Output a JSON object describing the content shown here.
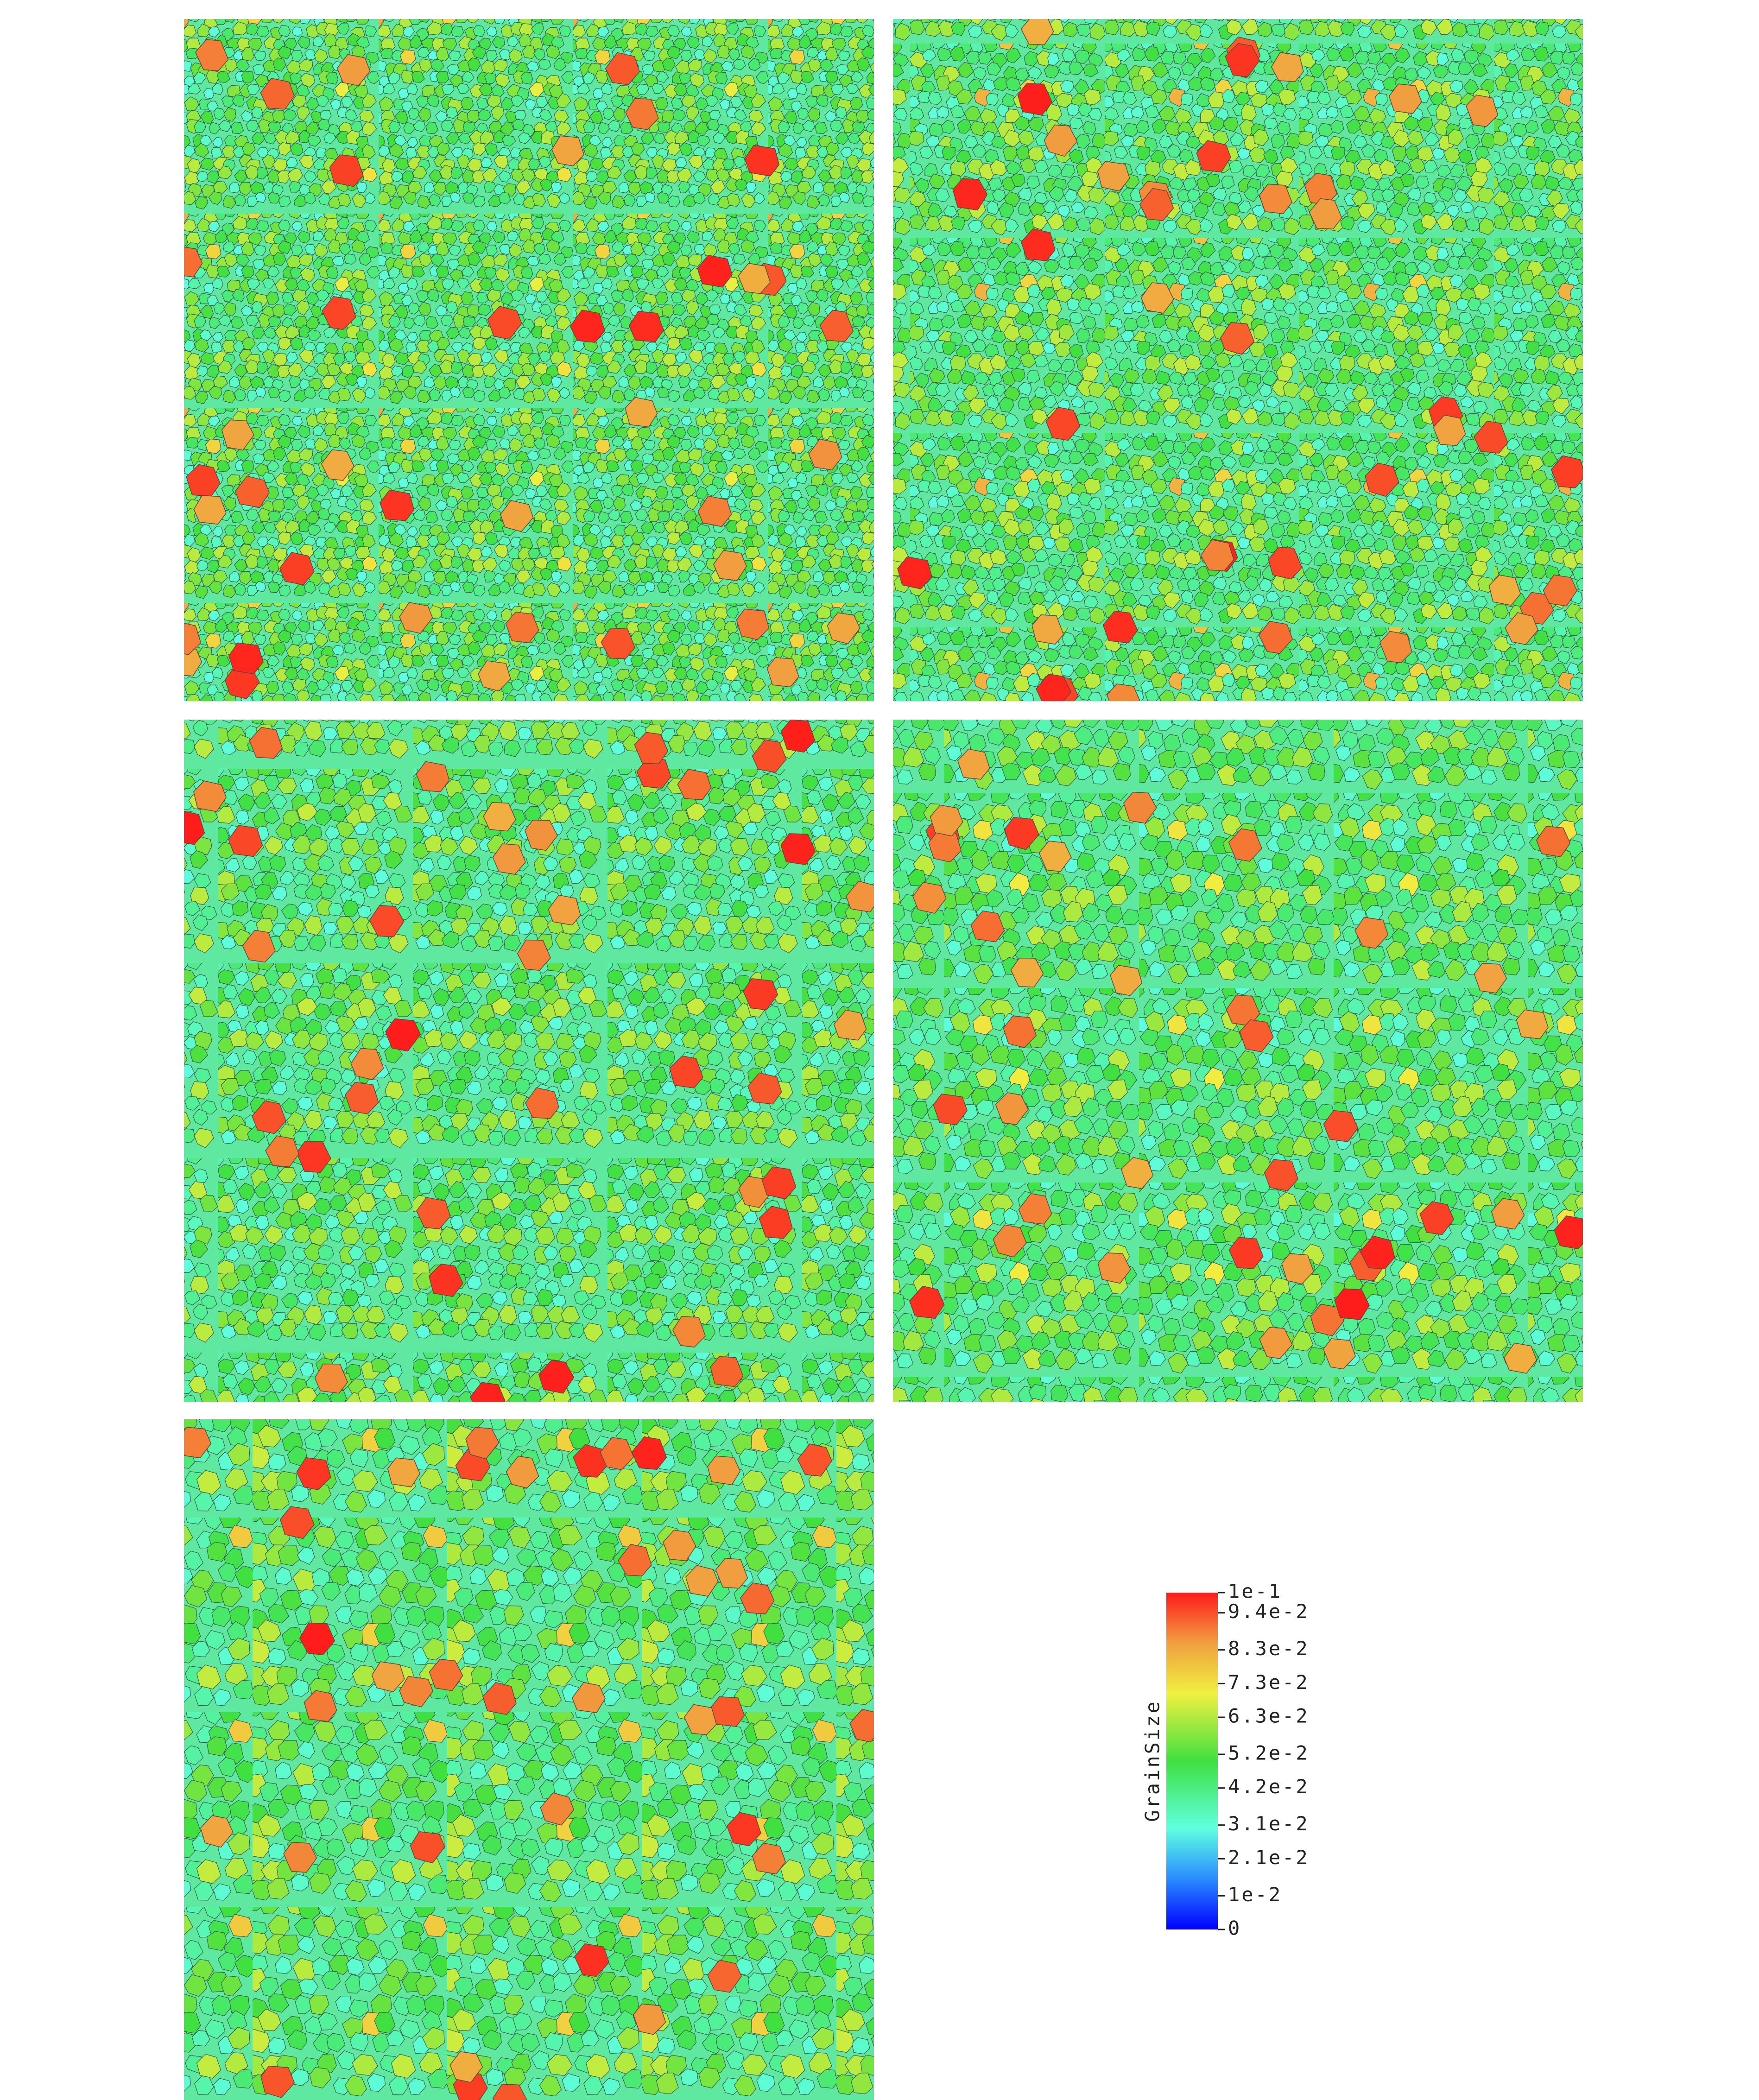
{
  "colorbar": {
    "title": "GrainSize",
    "range": [
      0,
      0.1
    ],
    "ticks": [
      {
        "value": 0.1,
        "label": "1e-1"
      },
      {
        "value": 0.094,
        "label": "9.4e-2"
      },
      {
        "value": 0.083,
        "label": "8.3e-2"
      },
      {
        "value": 0.073,
        "label": "7.3e-2"
      },
      {
        "value": 0.063,
        "label": "6.3e-2"
      },
      {
        "value": 0.052,
        "label": "5.2e-2"
      },
      {
        "value": 0.042,
        "label": "4.2e-2"
      },
      {
        "value": 0.031,
        "label": "3.1e-2"
      },
      {
        "value": 0.021,
        "label": "2.1e-2"
      },
      {
        "value": 0.01,
        "label": "1e-2"
      },
      0
    ]
  }
}
